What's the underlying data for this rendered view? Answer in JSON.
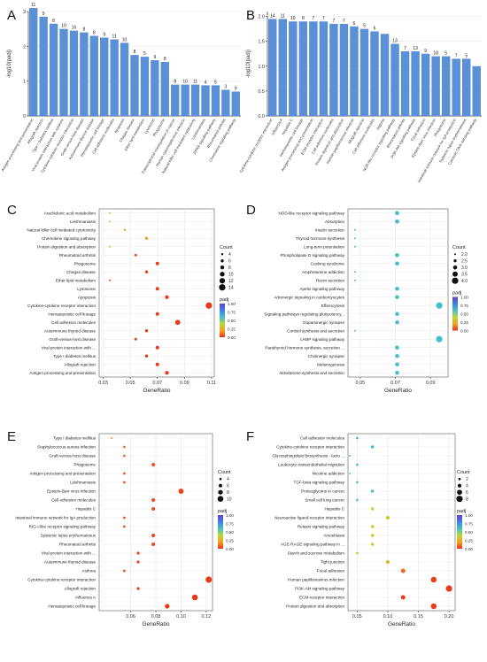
{
  "colors": {
    "bar": "#5b8fd6",
    "panel_bg": "#ffffff",
    "grid": "#e8e8e8",
    "axis": "#333333",
    "padj_gradient": [
      "#6a3fd1",
      "#3f7fe0",
      "#45c0c8",
      "#b7d83a",
      "#f6a21b",
      "#e8341b"
    ]
  },
  "chart_data": [
    {
      "panel": "A",
      "type": "bar",
      "ylabel": "-log10(padj)",
      "ylim": [
        0,
        3
      ],
      "yticks": [
        0,
        1,
        2,
        3
      ],
      "categories": [
        "Antigen processing and presentation",
        "Allograft rejection",
        "Type I diabetes mellitus",
        "Viral protein interaction with cytokine",
        "Cytokine-cytokine receptor interaction",
        "Graft-versus-host disease",
        "Autoimmune thyroid disease",
        "Hematopoietic cell lineage",
        "Cell adhesion molecules",
        "Apoptosis",
        "Chagas disease",
        "Ether lipid metabolism",
        "Lysosome",
        "Phagosome",
        "Transcriptional misregulation in cancer",
        "Human cytomegalovirus infection",
        "Natural killer cell mediated cytotoxicity",
        "Leishmaniasis",
        "PPAR signaling pathway",
        "Rheumatoid arthritis",
        "Chemokine signaling pathway"
      ],
      "values": [
        3.1,
        2.85,
        2.65,
        2.5,
        2.45,
        2.4,
        2.3,
        2.25,
        2.2,
        2.1,
        1.75,
        1.7,
        1.6,
        1.55,
        0.9,
        0.9,
        0.9,
        0.88,
        0.88,
        0.75,
        0.7
      ],
      "labels": [
        "11",
        "9",
        "8",
        "10",
        "16",
        "8",
        "8",
        "9",
        "11",
        "10",
        "8",
        "5",
        "9",
        "8",
        "8",
        "10",
        "11",
        "4",
        "5",
        "3",
        "9"
      ]
    },
    {
      "panel": "B",
      "type": "bar",
      "ylabel": "-log10(padj)",
      "ylim": [
        0,
        2.1
      ],
      "yticks": [
        0,
        0.5,
        1,
        1.5,
        2
      ],
      "ytick_labels": [
        "0.0",
        "0.5",
        "1.0",
        "1.5",
        "2.0"
      ],
      "categories": [
        "Cytokine-cytokine receptor interaction",
        "Influenza A",
        "Hepatitis C",
        "Hematopoietic cell lineage",
        "Antigen processing and presentation",
        "ECM-receptor interaction",
        "Cell adhesion molecules",
        "Protein digestion and absorption",
        "Human papillomavirus infection",
        "Allograft rejection",
        "Cell adhesion molecules",
        "Asthma",
        "NOD-like receptor signaling pathway",
        "Rheumatoid arthritis",
        "PI3K-Akt signaling pathway",
        "Focal adhesion",
        "Epstein-Barr virus infection",
        "Phagosome",
        "Intestinal immune network for IgA production",
        "Systemic lupus erythematosus",
        "Cytosolic DNA-sensing pathway"
      ],
      "values": [
        1.95,
        1.95,
        1.9,
        1.9,
        1.9,
        1.9,
        1.85,
        1.85,
        1.8,
        1.75,
        1.7,
        1.65,
        1.45,
        1.3,
        1.3,
        1.25,
        1.2,
        1.2,
        1.15,
        1.15,
        1.0
      ],
      "labels": [
        "14",
        "11",
        "10",
        "8",
        "7",
        "7",
        "7",
        "7",
        "6",
        "5",
        "6",
        "",
        "13",
        "7",
        "13",
        "9",
        "10",
        "5",
        "7",
        "5",
        ""
      ]
    },
    {
      "panel": "C",
      "type": "scatter",
      "xlabel": "GeneRatio",
      "xlim": [
        0.027,
        0.112
      ],
      "xticks": [
        0.03,
        0.05,
        0.07,
        0.09,
        0.11
      ],
      "xtick_labels": [
        "0.03",
        "0.05",
        "0.07",
        "0.09",
        "0.11"
      ],
      "count_legend": {
        "title": "Count",
        "values": [
          4,
          6,
          8,
          10,
          12,
          14
        ]
      },
      "padj_legend": {
        "title": "padj",
        "values": [
          "1.00",
          "0.75",
          "0.50",
          "0.25",
          "0.00"
        ]
      },
      "categories": [
        "Arachidonic acid metabolism",
        "Leishmaniasis",
        "Natural killer cell mediated cytotoxicity",
        "Chemokine signaling pathway",
        "Protein digestion and absorption",
        "Rheumatoid arthritis",
        "Phagosome",
        "Chagas disease",
        "Ether lipid metabolism",
        "Lysosome",
        "Apoptosis",
        "Cytokine-cytokine receptor interaction",
        "Hematopoietic cell lineage",
        "Cell adhesion molecules",
        "Autoimmune thyroid disease",
        "Graft-versus-host disease",
        "Viral protein interaction with ...",
        "Type I diabetes mellitus",
        "Allograft rejection",
        "Antigen processing and presentation"
      ],
      "points": [
        {
          "x": 0.035,
          "count": 3,
          "padj": 0.35
        },
        {
          "x": 0.035,
          "count": 3,
          "padj": 0.3
        },
        {
          "x": 0.046,
          "count": 4,
          "padj": 0.25
        },
        {
          "x": 0.062,
          "count": 6,
          "padj": 0.2
        },
        {
          "x": 0.035,
          "count": 3,
          "padj": 0.2
        },
        {
          "x": 0.054,
          "count": 5,
          "padj": 0.05
        },
        {
          "x": 0.07,
          "count": 7,
          "padj": 0.02
        },
        {
          "x": 0.062,
          "count": 6,
          "padj": 0.02
        },
        {
          "x": 0.035,
          "count": 3,
          "padj": 0.02
        },
        {
          "x": 0.07,
          "count": 7,
          "padj": 0.02
        },
        {
          "x": 0.077,
          "count": 8,
          "padj": 0.01
        },
        {
          "x": 0.108,
          "count": 14,
          "padj": 0.01
        },
        {
          "x": 0.07,
          "count": 7,
          "padj": 0.01
        },
        {
          "x": 0.085,
          "count": 11,
          "padj": 0.01
        },
        {
          "x": 0.062,
          "count": 6,
          "padj": 0.01
        },
        {
          "x": 0.054,
          "count": 5,
          "padj": 0.01
        },
        {
          "x": 0.07,
          "count": 7,
          "padj": 0.01
        },
        {
          "x": 0.062,
          "count": 6,
          "padj": 0.01
        },
        {
          "x": 0.07,
          "count": 7,
          "padj": 0.01
        },
        {
          "x": 0.077,
          "count": 8,
          "padj": 0.01
        }
      ]
    },
    {
      "panel": "D",
      "type": "scatter",
      "xlabel": "GeneRatio",
      "xlim": [
        0.043,
        0.1
      ],
      "xticks": [
        0.05,
        0.07,
        0.09
      ],
      "xtick_labels": [
        "0.05",
        "0.07",
        "0.09"
      ],
      "count_legend": {
        "title": "Count",
        "values": [
          "2.0",
          "2.5",
          "3.0",
          "3.5",
          "4.0"
        ]
      },
      "padj_legend": {
        "title": "padj",
        "values": [
          "1.00",
          "0.75",
          "0.50",
          "0.25",
          "0.00"
        ]
      },
      "categories": [
        "NOD-like receptor signaling pathway",
        "Absorption",
        "Insulin secretion",
        "Thyroid hormone synthesis",
        "Long-term potentiation",
        "Phospholipase D signaling pathway",
        "Cushing syndrome",
        "Amphetamine addiction",
        "Renin secretion",
        "Apelin signaling pathway",
        "Adrenergic signaling in cardiomyocytes",
        "Efferocytosis",
        "Signaling pathways regulating pluripotency...",
        "Dopaminergic synapse",
        "Cortisol synthesis and secretion",
        "cAMP signaling pathway",
        "Parathyroid hormone synthesis, secretion ...",
        "Cholinergic synapse",
        "Melanogenesis",
        "Aldosterone synthesis and secretion"
      ],
      "points": [
        {
          "x": 0.071,
          "count": 3,
          "padj": 0.62
        },
        {
          "x": 0.071,
          "count": 3,
          "padj": 0.62
        },
        {
          "x": 0.047,
          "count": 2,
          "padj": 0.58
        },
        {
          "x": 0.047,
          "count": 2,
          "padj": 0.58
        },
        {
          "x": 0.047,
          "count": 2,
          "padj": 0.58
        },
        {
          "x": 0.071,
          "count": 3,
          "padj": 0.6
        },
        {
          "x": 0.071,
          "count": 3,
          "padj": 0.6
        },
        {
          "x": 0.047,
          "count": 2,
          "padj": 0.58
        },
        {
          "x": 0.047,
          "count": 2,
          "padj": 0.58
        },
        {
          "x": 0.071,
          "count": 3,
          "padj": 0.6
        },
        {
          "x": 0.071,
          "count": 3,
          "padj": 0.6
        },
        {
          "x": 0.095,
          "count": 4,
          "padj": 0.6
        },
        {
          "x": 0.071,
          "count": 3,
          "padj": 0.6
        },
        {
          "x": 0.071,
          "count": 3,
          "padj": 0.6
        },
        {
          "x": 0.047,
          "count": 2,
          "padj": 0.58
        },
        {
          "x": 0.095,
          "count": 4,
          "padj": 0.6
        },
        {
          "x": 0.071,
          "count": 3,
          "padj": 0.6
        },
        {
          "x": 0.071,
          "count": 3,
          "padj": 0.6
        },
        {
          "x": 0.071,
          "count": 3,
          "padj": 0.6
        },
        {
          "x": 0.071,
          "count": 3,
          "padj": 0.6
        }
      ]
    },
    {
      "panel": "E",
      "type": "scatter",
      "xlabel": "GeneRatio",
      "xlim": [
        0.035,
        0.125
      ],
      "xticks": [
        0.06,
        0.08,
        0.1,
        0.12
      ],
      "xtick_labels": [
        "0.06",
        "0.08",
        "0.10",
        "0.12"
      ],
      "count_legend": {
        "title": "Count",
        "values": [
          4,
          6,
          8,
          10
        ]
      },
      "padj_legend": {
        "title": "padj",
        "values": [
          "1.00",
          "0.75",
          "0.50",
          "0.25",
          "0.00"
        ]
      },
      "categories": [
        "Type I diabetes mellitus",
        "Staphylococcus aureus infection",
        "Graft-versus-host disease",
        "Phagosome",
        "Antigen processing and presentation",
        "Leishmaniasis",
        "Epstein-Barr virus infection",
        "Cell adhesion molecules",
        "Hepatitis C",
        "Intestinal immune network for IgA production",
        "RIG-I-like receptor signaling pathway",
        "Systemic lupus erythematosus",
        "Rheumatoid arthritis",
        "Viral protein interaction with ...",
        "Autoimmune thyroid disease",
        "Asthma",
        "Cytokine-cytokine receptor interaction",
        "Allograft rejection",
        "Influenza A",
        "Hematopoietic cell lineage"
      ],
      "points": [
        {
          "x": 0.045,
          "count": 3,
          "padj": 0.15
        },
        {
          "x": 0.055,
          "count": 4,
          "padj": 0.1
        },
        {
          "x": 0.055,
          "count": 4,
          "padj": 0.08
        },
        {
          "x": 0.078,
          "count": 6,
          "padj": 0.05
        },
        {
          "x": 0.055,
          "count": 4,
          "padj": 0.05
        },
        {
          "x": 0.055,
          "count": 4,
          "padj": 0.05
        },
        {
          "x": 0.1,
          "count": 9,
          "padj": 0.03
        },
        {
          "x": 0.078,
          "count": 6,
          "padj": 0.04
        },
        {
          "x": 0.078,
          "count": 6,
          "padj": 0.04
        },
        {
          "x": 0.055,
          "count": 4,
          "padj": 0.04
        },
        {
          "x": 0.055,
          "count": 4,
          "padj": 0.04
        },
        {
          "x": 0.078,
          "count": 6,
          "padj": 0.03
        },
        {
          "x": 0.078,
          "count": 6,
          "padj": 0.03
        },
        {
          "x": 0.066,
          "count": 5,
          "padj": 0.03
        },
        {
          "x": 0.066,
          "count": 5,
          "padj": 0.03
        },
        {
          "x": 0.055,
          "count": 4,
          "padj": 0.03
        },
        {
          "x": 0.122,
          "count": 11,
          "padj": 0.01
        },
        {
          "x": 0.066,
          "count": 5,
          "padj": 0.02
        },
        {
          "x": 0.111,
          "count": 10,
          "padj": 0.01
        },
        {
          "x": 0.089,
          "count": 8,
          "padj": 0.01
        }
      ]
    },
    {
      "panel": "F",
      "type": "scatter",
      "xlabel": "GeneRatio",
      "xlim": [
        0.035,
        0.21
      ],
      "xticks": [
        0.05,
        0.1,
        0.15,
        0.2
      ],
      "xtick_labels": [
        "0.05",
        "0.10",
        "0.15",
        "0.20"
      ],
      "count_legend": {
        "title": "Count",
        "values": [
          2,
          4,
          6,
          8
        ]
      },
      "padj_legend": {
        "title": "padj",
        "values": [
          "1.00",
          "0.75",
          "0.50",
          "0.25",
          "0.00"
        ]
      },
      "categories": [
        "Cell adhesion molecules",
        "Cytokine-cytokine receptor interaction",
        "Glycosphingolipid biosynthesis - lacto ...",
        "Leukocyte transendothelial migration",
        "Nicotine addiction",
        "TGF-beta signaling pathway",
        "Proteoglycans in cancer",
        "Small cell lung cancer",
        "Hepatitis C",
        "Neuroactive ligand-receptor interaction",
        "Relaxin signaling pathway",
        "Amoebiasis",
        "AGE-RAGE signaling pathway in ...",
        "Starch and sucrose metabolism",
        "Tight junction",
        "Focal adhesion",
        "Human papillomavirus infection",
        "PI3K-Akt signaling pathway",
        "ECM-receptor interaction",
        "Protein digestion and absorption"
      ],
      "points": [
        {
          "x": 0.05,
          "count": 2,
          "padj": 0.62
        },
        {
          "x": 0.075,
          "count": 3,
          "padj": 0.62
        },
        {
          "x": 0.038,
          "count": 1,
          "padj": 0.62
        },
        {
          "x": 0.05,
          "count": 2,
          "padj": 0.6
        },
        {
          "x": 0.038,
          "count": 1,
          "padj": 0.58
        },
        {
          "x": 0.05,
          "count": 2,
          "padj": 0.58
        },
        {
          "x": 0.075,
          "count": 3,
          "padj": 0.58
        },
        {
          "x": 0.05,
          "count": 2,
          "padj": 0.58
        },
        {
          "x": 0.075,
          "count": 3,
          "padj": 0.4
        },
        {
          "x": 0.1,
          "count": 4,
          "padj": 0.35
        },
        {
          "x": 0.075,
          "count": 3,
          "padj": 0.35
        },
        {
          "x": 0.075,
          "count": 3,
          "padj": 0.35
        },
        {
          "x": 0.075,
          "count": 3,
          "padj": 0.35
        },
        {
          "x": 0.05,
          "count": 2,
          "padj": 0.35
        },
        {
          "x": 0.1,
          "count": 4,
          "padj": 0.3
        },
        {
          "x": 0.125,
          "count": 5,
          "padj": 0.1
        },
        {
          "x": 0.175,
          "count": 7,
          "padj": 0.02
        },
        {
          "x": 0.2,
          "count": 8,
          "padj": 0.01
        },
        {
          "x": 0.125,
          "count": 5,
          "padj": 0.02
        },
        {
          "x": 0.175,
          "count": 7,
          "padj": 0.01
        }
      ]
    }
  ]
}
